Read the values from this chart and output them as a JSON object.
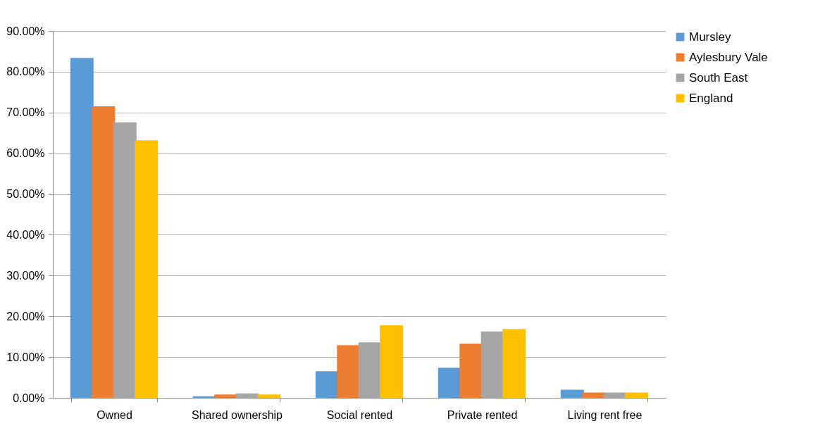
{
  "chart_data": {
    "type": "bar",
    "categories": [
      "Owned",
      "Shared ownership",
      "Social rented",
      "Private rented",
      "Living rent free"
    ],
    "series": [
      {
        "name": "Mursley",
        "color": "#5b9bd5",
        "values": [
          83.4,
          0.4,
          6.5,
          7.4,
          2.0
        ]
      },
      {
        "name": "Aylesbury Vale",
        "color": "#ed7d31",
        "values": [
          71.5,
          0.8,
          12.9,
          13.3,
          1.3
        ]
      },
      {
        "name": "South East",
        "color": "#a5a5a5",
        "values": [
          67.6,
          1.1,
          13.6,
          16.3,
          1.3
        ]
      },
      {
        "name": "England",
        "color": "#ffc000",
        "values": [
          63.2,
          0.8,
          17.8,
          16.9,
          1.3
        ]
      }
    ],
    "ylim": [
      0,
      90
    ],
    "yticks": [
      {
        "value": 0,
        "label": "0.00%"
      },
      {
        "value": 10,
        "label": "10.00%"
      },
      {
        "value": 20,
        "label": "20.00%"
      },
      {
        "value": 30,
        "label": "30.00%"
      },
      {
        "value": 40,
        "label": "40.00%"
      },
      {
        "value": 50,
        "label": "50.00%"
      },
      {
        "value": 60,
        "label": "60.00%"
      },
      {
        "value": 70,
        "label": "70.00%"
      },
      {
        "value": 80,
        "label": "80.00%"
      },
      {
        "value": 90,
        "label": "90.00%"
      }
    ],
    "grid": "y",
    "legend": "right"
  }
}
